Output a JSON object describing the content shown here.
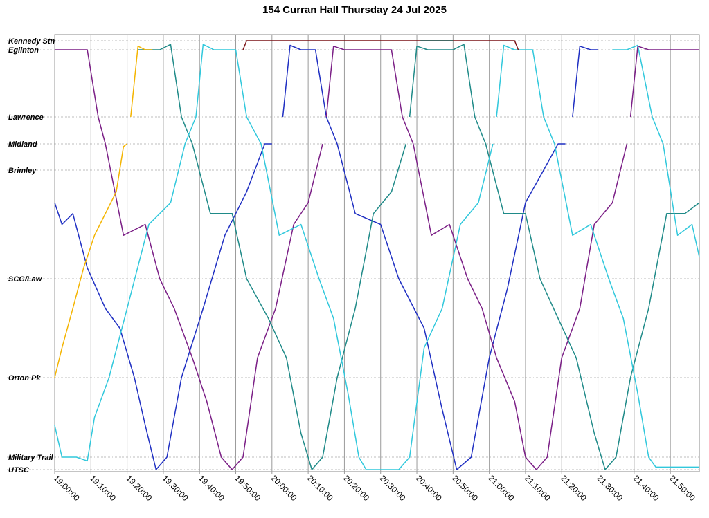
{
  "chart_data": {
    "type": "line",
    "title": "154 Curran Hall Thursday 24 Jul 2025",
    "x_axis": {
      "min": "19:00:00",
      "max": "21:58:00",
      "ticks": [
        "19:00:00",
        "19:10:00",
        "19:20:00",
        "19:30:00",
        "19:40:00",
        "19:50:00",
        "20:00:00",
        "20:10:00",
        "20:20:00",
        "20:30:00",
        "20:40:00",
        "20:50:00",
        "21:00:00",
        "21:10:00",
        "21:20:00",
        "21:30:00",
        "21:40:00",
        "21:50:00"
      ]
    },
    "y_axis": {
      "stops": [
        "Kennedy Stn",
        "Eglinton",
        "Lawrence",
        "Midland",
        "Brimley",
        "SCG/Law",
        "Orton Pk",
        "Military Trail",
        "UTSC"
      ],
      "labels": [
        "Kennedy Stn",
        "Eglinton",
        "Lawrence",
        "Midland",
        "Brimley",
        "SCG/Law",
        "Orton Pk",
        "Military Trail",
        "UTSC"
      ]
    },
    "grid": true,
    "legend": "none",
    "series": [
      {
        "color": "#1f2fc2",
        "points": [
          [
            "19:00:00",
            "Brimley+0.3"
          ],
          [
            "19:02:00",
            "Brimley+0.5"
          ],
          [
            "19:05:00",
            "SCG/Law-0.6"
          ],
          [
            "19:09:00",
            "SCG/Law-0.1"
          ],
          [
            "19:14:00",
            "SCG/Law+0.3"
          ],
          [
            "19:18:00",
            "Orton Pk-0.5"
          ],
          [
            "19:22:00",
            "Orton Pk"
          ],
          [
            "19:25:00",
            "Military Trail-0.4"
          ],
          [
            "19:28:00",
            "UTSC"
          ],
          [
            "19:31:00",
            "Military Trail"
          ],
          [
            "19:35:00",
            "Orton Pk"
          ],
          [
            "19:41:00",
            "SCG/Law+0.3"
          ],
          [
            "19:47:00",
            "SCG/Law-0.4"
          ],
          [
            "19:53:00",
            "Brimley+0.2"
          ],
          [
            "19:58:00",
            "Midland"
          ],
          [
            "20:00:00",
            "Midland"
          ]
        ]
      },
      {
        "color": "#1f2fc2",
        "points": [
          [
            "20:03:00",
            "Lawrence"
          ],
          [
            "20:05:00",
            "Eglinton-0.5"
          ],
          [
            "20:08:00",
            "Eglinton"
          ],
          [
            "20:12:00",
            "Eglinton"
          ],
          [
            "20:15:00",
            "Lawrence"
          ],
          [
            "20:18:00",
            "Midland"
          ],
          [
            "20:23:00",
            "Brimley+0.4"
          ],
          [
            "20:30:00",
            "SCG/Law-0.5"
          ],
          [
            "20:35:00",
            "SCG/Law"
          ],
          [
            "20:42:00",
            "SCG/Law+0.5"
          ],
          [
            "20:47:00",
            "Orton Pk+0.4"
          ],
          [
            "20:51:00",
            "UTSC"
          ],
          [
            "20:55:00",
            "Military Trail"
          ],
          [
            "21:00:00",
            "Orton Pk-0.2"
          ],
          [
            "21:05:00",
            "SCG/Law+0.1"
          ],
          [
            "21:10:00",
            "SCG/Law-0.7"
          ],
          [
            "21:15:00",
            "Brimley"
          ],
          [
            "21:19:00",
            "Midland"
          ],
          [
            "21:21:00",
            "Midland"
          ]
        ]
      },
      {
        "color": "#1f2fc2",
        "points": [
          [
            "21:23:00",
            "Lawrence"
          ],
          [
            "21:25:00",
            "Eglinton-0.4"
          ],
          [
            "21:28:00",
            "Eglinton"
          ],
          [
            "21:30:00",
            "Eglinton"
          ]
        ]
      },
      {
        "color": "#7b1f86",
        "points": [
          [
            "19:00:00",
            "Eglinton"
          ],
          [
            "19:05:00",
            "Eglinton"
          ],
          [
            "19:09:00",
            "Eglinton"
          ],
          [
            "19:12:00",
            "Lawrence"
          ],
          [
            "19:14:00",
            "Midland"
          ],
          [
            "19:19:00",
            "Brimley+0.6"
          ],
          [
            "19:25:00",
            "SCG/Law-0.5"
          ],
          [
            "19:29:00",
            "SCG/Law"
          ],
          [
            "19:33:00",
            "SCG/Law+0.3"
          ],
          [
            "19:38:00",
            "Orton Pk-0.2"
          ],
          [
            "19:42:00",
            "Orton Pk+0.3"
          ],
          [
            "19:46:00",
            "Military Trail"
          ],
          [
            "19:49:00",
            "UTSC"
          ],
          [
            "19:52:00",
            "Military Trail"
          ],
          [
            "19:56:00",
            "Orton Pk-0.2"
          ],
          [
            "20:01:00",
            "SCG/Law+0.3"
          ],
          [
            "20:06:00",
            "SCG/Law-0.5"
          ],
          [
            "20:10:00",
            "Brimley+0.3"
          ],
          [
            "20:14:00",
            "Midland"
          ]
        ]
      },
      {
        "color": "#7b1f86",
        "points": [
          [
            "20:15:00",
            "Lawrence"
          ],
          [
            "20:17:00",
            "Eglinton-0.4"
          ],
          [
            "20:20:00",
            "Eglinton"
          ],
          [
            "20:30:00",
            "Eglinton"
          ],
          [
            "20:33:00",
            "Eglinton"
          ],
          [
            "20:36:00",
            "Lawrence"
          ],
          [
            "20:39:00",
            "Midland"
          ],
          [
            "20:44:00",
            "Brimley+0.6"
          ],
          [
            "20:49:00",
            "SCG/Law-0.5"
          ],
          [
            "20:54:00",
            "SCG/Law"
          ],
          [
            "20:58:00",
            "SCG/Law+0.3"
          ],
          [
            "21:02:00",
            "Orton Pk-0.2"
          ],
          [
            "21:07:00",
            "Orton Pk+0.3"
          ],
          [
            "21:10:00",
            "Military Trail"
          ],
          [
            "21:13:00",
            "UTSC"
          ],
          [
            "21:16:00",
            "Military Trail"
          ],
          [
            "21:20:00",
            "Orton Pk-0.2"
          ],
          [
            "21:25:00",
            "SCG/Law+0.3"
          ],
          [
            "21:29:00",
            "SCG/Law-0.5"
          ],
          [
            "21:34:00",
            "Brimley+0.3"
          ],
          [
            "21:38:00",
            "Midland"
          ]
        ]
      },
      {
        "color": "#7b1f86",
        "points": [
          [
            "21:39:00",
            "Lawrence"
          ],
          [
            "21:41:00",
            "Eglinton-0.4"
          ],
          [
            "21:44:00",
            "Eglinton"
          ],
          [
            "21:58:00",
            "Eglinton"
          ]
        ]
      },
      {
        "color": "#1f8a88",
        "points": [
          [
            "19:23:00",
            "Eglinton"
          ],
          [
            "19:26:00",
            "Eglinton"
          ],
          [
            "19:29:00",
            "Eglinton"
          ],
          [
            "19:32:00",
            "Eglinton-0.6"
          ],
          [
            "19:35:00",
            "Lawrence"
          ],
          [
            "19:38:00",
            "Midland"
          ],
          [
            "19:43:00",
            "Brimley+0.4"
          ],
          [
            "19:49:00",
            "SCG/Law-0.6"
          ],
          [
            "19:53:00",
            "SCG/Law"
          ],
          [
            "19:59:00",
            "SCG/Law+0.4"
          ],
          [
            "20:04:00",
            "Orton Pk-0.2"
          ],
          [
            "20:08:00",
            "Military Trail-0.3"
          ],
          [
            "20:11:00",
            "UTSC"
          ],
          [
            "20:14:00",
            "Military Trail"
          ],
          [
            "20:18:00",
            "Orton Pk"
          ],
          [
            "20:23:00",
            "SCG/Law+0.3"
          ],
          [
            "20:28:00",
            "SCG/Law-0.6"
          ],
          [
            "20:33:00",
            "Brimley+0.2"
          ],
          [
            "20:37:00",
            "Midland"
          ]
        ]
      },
      {
        "color": "#1f8a88",
        "points": [
          [
            "20:38:00",
            "Lawrence"
          ],
          [
            "20:40:00",
            "Eglinton-0.4"
          ],
          [
            "20:43:00",
            "Eglinton"
          ],
          [
            "20:50:00",
            "Eglinton"
          ],
          [
            "20:53:00",
            "Eglinton-0.6"
          ],
          [
            "20:56:00",
            "Lawrence"
          ],
          [
            "20:59:00",
            "Midland"
          ],
          [
            "21:04:00",
            "Brimley+0.4"
          ],
          [
            "21:10:00",
            "SCG/Law-0.6"
          ],
          [
            "21:14:00",
            "SCG/Law"
          ],
          [
            "21:19:00",
            "SCG/Law+0.4"
          ],
          [
            "21:24:00",
            "Orton Pk-0.2"
          ],
          [
            "21:29:00",
            "Military Trail-0.3"
          ],
          [
            "21:32:00",
            "UTSC"
          ],
          [
            "21:35:00",
            "Military Trail"
          ],
          [
            "21:39:00",
            "Orton Pk"
          ],
          [
            "21:44:00",
            "SCG/Law+0.3"
          ],
          [
            "21:49:00",
            "SCG/Law-0.6"
          ],
          [
            "21:54:00",
            "Brimley+0.4"
          ],
          [
            "21:58:00",
            "Brimley+0.3"
          ]
        ]
      },
      {
        "color": "#31c8dc",
        "points": [
          [
            "19:00:00",
            "Military Trail-0.4"
          ],
          [
            "19:02:00",
            "Military Trail"
          ],
          [
            "19:06:00",
            "Military Trail"
          ],
          [
            "19:09:00",
            "Military Trail+0.3"
          ],
          [
            "19:11:00",
            "Military Trail-0.5"
          ],
          [
            "19:15:00",
            "Orton Pk"
          ],
          [
            "19:20:00",
            "SCG/Law+0.3"
          ],
          [
            "19:26:00",
            "SCG/Law-0.5"
          ],
          [
            "19:32:00",
            "Brimley+0.3"
          ],
          [
            "19:36:00",
            "Midland"
          ],
          [
            "19:39:00",
            "Lawrence"
          ],
          [
            "19:41:00",
            "Eglinton-0.6"
          ],
          [
            "19:44:00",
            "Eglinton"
          ],
          [
            "19:50:00",
            "Eglinton"
          ],
          [
            "19:53:00",
            "Lawrence"
          ],
          [
            "19:57:00",
            "Midland"
          ],
          [
            "20:02:00",
            "Brimley+0.6"
          ],
          [
            "20:08:00",
            "SCG/Law-0.5"
          ],
          [
            "20:13:00",
            "SCG/Law"
          ],
          [
            "20:17:00",
            "SCG/Law+0.4"
          ],
          [
            "20:21:00",
            "Orton Pk+0.2"
          ],
          [
            "20:24:00",
            "Military Trail"
          ],
          [
            "20:26:00",
            "UTSC"
          ],
          [
            "20:35:00",
            "UTSC"
          ],
          [
            "20:38:00",
            "Military Trail"
          ],
          [
            "20:42:00",
            "Orton Pk-0.3"
          ],
          [
            "20:47:00",
            "SCG/Law+0.3"
          ],
          [
            "20:52:00",
            "SCG/Law-0.5"
          ],
          [
            "20:57:00",
            "Brimley+0.3"
          ],
          [
            "21:01:00",
            "Midland"
          ]
        ]
      },
      {
        "color": "#31c8dc",
        "points": [
          [
            "21:02:00",
            "Lawrence"
          ],
          [
            "21:04:00",
            "Eglinton-0.5"
          ],
          [
            "21:07:00",
            "Eglinton"
          ],
          [
            "21:12:00",
            "Eglinton"
          ],
          [
            "21:15:00",
            "Lawrence"
          ],
          [
            "21:18:00",
            "Midland"
          ],
          [
            "21:23:00",
            "Brimley+0.6"
          ],
          [
            "21:28:00",
            "SCG/Law-0.5"
          ],
          [
            "21:33:00",
            "SCG/Law"
          ],
          [
            "21:37:00",
            "SCG/Law+0.4"
          ],
          [
            "21:41:00",
            "Orton Pk+0.2"
          ],
          [
            "21:44:00",
            "Military Trail"
          ],
          [
            "21:46:00",
            "UTSC-0.2"
          ],
          [
            "21:58:00",
            "UTSC-0.2"
          ]
        ]
      },
      {
        "color": "#31c8dc",
        "points": [
          [
            "21:34:00",
            "Eglinton"
          ],
          [
            "21:38:00",
            "Eglinton"
          ],
          [
            "21:41:00",
            "Eglinton-0.5"
          ],
          [
            "21:45:00",
            "Lawrence"
          ],
          [
            "21:48:00",
            "Midland"
          ],
          [
            "21:52:00",
            "Brimley+0.6"
          ],
          [
            "21:56:00",
            "SCG/Law-0.5"
          ],
          [
            "21:58:00",
            "SCG/Law-0.2"
          ]
        ]
      },
      {
        "color": "#f4b400",
        "points": [
          [
            "19:00:00",
            "Orton Pk"
          ],
          [
            "19:02:00",
            "Orton Pk-0.3"
          ],
          [
            "19:05:00",
            "SCG/Law+0.3"
          ],
          [
            "19:08:00",
            "SCG/Law-0.1"
          ],
          [
            "19:11:00",
            "SCG/Law-0.4"
          ],
          [
            "19:14:00",
            "Brimley+0.4"
          ],
          [
            "19:17:00",
            "Brimley+0.2"
          ],
          [
            "19:19:00",
            "Midland+0.1"
          ],
          [
            "19:20:00",
            "Midland"
          ]
        ]
      },
      {
        "color": "#f4b400",
        "points": [
          [
            "19:21:00",
            "Lawrence"
          ],
          [
            "19:23:00",
            "Eglinton-0.4"
          ],
          [
            "19:25:00",
            "Eglinton"
          ],
          [
            "19:27:00",
            "Eglinton"
          ]
        ]
      },
      {
        "color": "#7a1216",
        "points": [
          [
            "19:52:00",
            "Eglinton"
          ],
          [
            "19:53:00",
            "Kennedy Stn"
          ],
          [
            "20:20:00",
            "Kennedy Stn"
          ],
          [
            "20:50:00",
            "Kennedy Stn"
          ],
          [
            "21:07:00",
            "Kennedy Stn"
          ],
          [
            "21:08:00",
            "Eglinton"
          ]
        ]
      },
      {
        "color": "#1b5e56",
        "points": [
          [
            "20:41:00",
            "Kennedy Stn"
          ],
          [
            "20:50:00",
            "Kennedy Stn"
          ]
        ]
      }
    ]
  }
}
